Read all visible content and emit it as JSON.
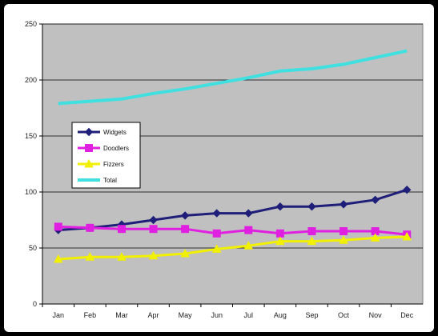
{
  "chart_data": {
    "type": "line",
    "title": "",
    "xlabel": "",
    "ylabel": "",
    "categories": [
      "Jan",
      "Feb",
      "Mar",
      "Apr",
      "May",
      "Jun",
      "Jul",
      "Aug",
      "Sep",
      "Oct",
      "Nov",
      "Dec"
    ],
    "ylim": [
      0,
      250
    ],
    "yticks": [
      0,
      50,
      100,
      150,
      200,
      250
    ],
    "grid": "horizontal",
    "plot_background": "#c0c0c0",
    "legend_position": "left-middle",
    "series": [
      {
        "name": "Widgets",
        "color": "#1f1f7a",
        "marker": "diamond",
        "values": [
          66,
          68,
          71,
          75,
          79,
          81,
          81,
          87,
          87,
          89,
          93,
          102
        ]
      },
      {
        "name": "Doodlers",
        "color": "#e020e0",
        "marker": "square",
        "values": [
          69,
          68,
          67,
          67,
          67,
          63,
          66,
          63,
          65,
          65,
          65,
          62
        ]
      },
      {
        "name": "Fizzers",
        "color": "#f0f000",
        "marker": "triangle",
        "values": [
          40,
          42,
          42,
          43,
          45,
          49,
          52,
          56,
          56,
          57,
          59,
          60
        ]
      },
      {
        "name": "Total",
        "color": "#40e0e0",
        "marker": "none",
        "values": [
          179,
          181,
          183,
          188,
          192,
          197,
          202,
          208,
          210,
          214,
          220,
          226
        ]
      }
    ]
  }
}
